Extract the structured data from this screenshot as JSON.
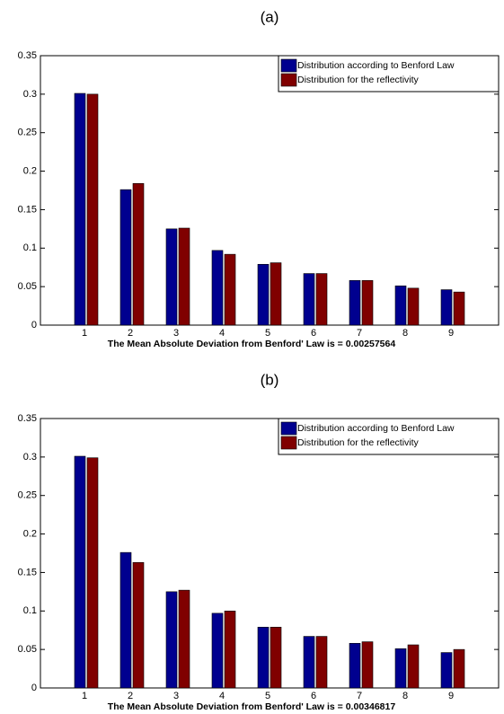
{
  "chart_data": [
    {
      "type": "bar",
      "title": "(a)",
      "x_label": "The Mean Absolute Deviation from Benford' Law is = 0.00257564",
      "categories": [
        "1",
        "2",
        "3",
        "4",
        "5",
        "6",
        "7",
        "8",
        "9"
      ],
      "series": [
        {
          "name": "Distribution according to Benford Law",
          "color": "#00008f",
          "values": [
            0.301,
            0.176,
            0.125,
            0.097,
            0.079,
            0.067,
            0.058,
            0.051,
            0.046
          ]
        },
        {
          "name": "Distribution for the reflectivity",
          "color": "#800000",
          "values": [
            0.3,
            0.184,
            0.126,
            0.092,
            0.081,
            0.067,
            0.058,
            0.048,
            0.043
          ]
        }
      ],
      "ylim": [
        0,
        0.35
      ],
      "yticks": [
        0,
        0.05,
        0.1,
        0.15,
        0.2,
        0.25,
        0.3,
        0.35
      ],
      "legend": "upper right"
    },
    {
      "type": "bar",
      "title": "(b)",
      "x_label": "The Mean Absolute Deviation from Benford' Law is = 0.00346817",
      "categories": [
        "1",
        "2",
        "3",
        "4",
        "5",
        "6",
        "7",
        "8",
        "9"
      ],
      "series": [
        {
          "name": "Distribution according to Benford Law",
          "color": "#00008f",
          "values": [
            0.301,
            0.176,
            0.125,
            0.097,
            0.079,
            0.067,
            0.058,
            0.051,
            0.046
          ]
        },
        {
          "name": "Distribution for the reflectivity",
          "color": "#800000",
          "values": [
            0.299,
            0.163,
            0.127,
            0.1,
            0.079,
            0.067,
            0.06,
            0.056,
            0.05
          ]
        }
      ],
      "ylim": [
        0,
        0.35
      ],
      "yticks": [
        0,
        0.05,
        0.1,
        0.15,
        0.2,
        0.25,
        0.3,
        0.35
      ],
      "legend": "upper right"
    }
  ]
}
